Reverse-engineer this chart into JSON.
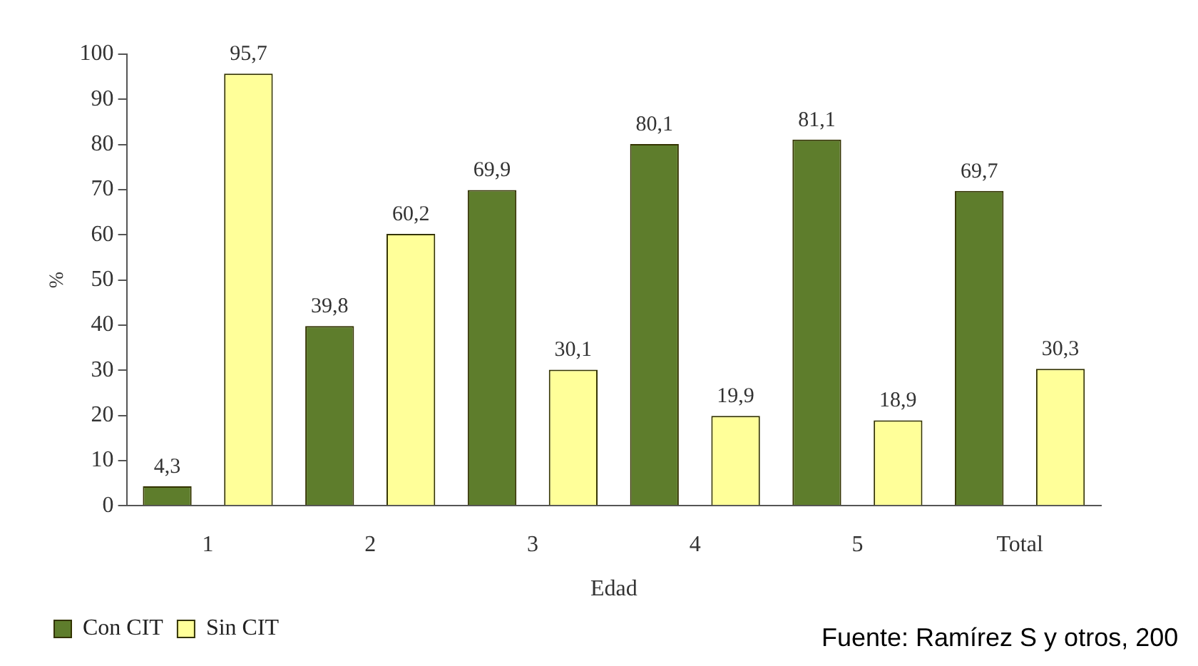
{
  "chart_data": {
    "type": "bar",
    "xlabel": "Edad",
    "ylabel": "%",
    "categories": [
      "1",
      "2",
      "3",
      "4",
      "5",
      "Total"
    ],
    "series": [
      {
        "name": "Con CIT",
        "color": "#5e7d2c",
        "values": [
          4.3,
          39.8,
          69.9,
          80.1,
          81.1,
          69.7
        ],
        "value_labels": [
          "4,3",
          "39,8",
          "69,9",
          "80,1",
          "81,1",
          "69,7"
        ]
      },
      {
        "name": "Sin CIT",
        "color": "#ffff99",
        "values": [
          95.7,
          60.2,
          30.1,
          19.9,
          18.9,
          30.3
        ],
        "value_labels": [
          "95,7",
          "60,2",
          "30,1",
          "19,9",
          "18,9",
          "30,3"
        ]
      }
    ],
    "ylim": [
      0,
      100
    ],
    "yticks": [
      0,
      10,
      20,
      30,
      40,
      50,
      60,
      70,
      80,
      90,
      100
    ],
    "grid": false,
    "legend": "bottom left",
    "annotations": [
      "Fuente: Ramírez S y otros, 200"
    ]
  }
}
